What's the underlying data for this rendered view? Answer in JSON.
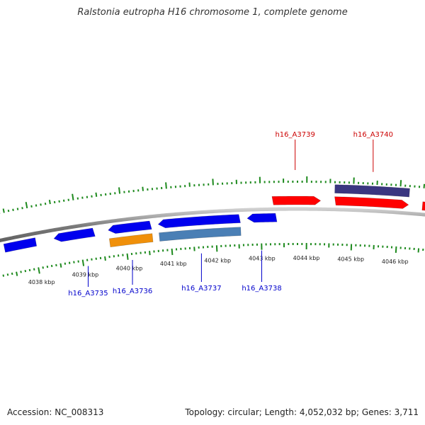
{
  "title": "Ralstonia eutropha H16 chromosome 1, complete genome",
  "footer": {
    "accession": "Accession: NC_008313",
    "stats": "Topology: circular; Length: 4,052,032 bp; Genes: 3,711"
  },
  "colors": {
    "tick": "#1e8a1e",
    "backbone": "#8a8a8a",
    "forward_gene": "#ff0000",
    "reverse_gene": "#0000ee",
    "label_top": "#cc0000",
    "label_bottom": "#0000cc",
    "orange_feature": "#f0900a",
    "steelblue_feature": "#4a7fb5",
    "navy_feature": "#3a3680"
  },
  "scale_labels": [
    "4038 kbp",
    "4039 kbp",
    "4040 kbp",
    "4041 kbp",
    "4042 kbp",
    "4043 kbp",
    "4044 kbp",
    "4045 kbp",
    "4046 kbp"
  ],
  "gene_labels_top": [
    "h16_A3739",
    "h16_A3740"
  ],
  "gene_labels_bottom": [
    "h16_A3735",
    "h16_A3736",
    "h16_A3737",
    "h16_A3738"
  ],
  "features": [
    {
      "lane": "reverse",
      "start_kbp": 4037.35,
      "end_kbp": 4038.05,
      "color": "reverse_gene",
      "arrow": "none"
    },
    {
      "lane": "reverse",
      "start_kbp": 4038.45,
      "end_kbp": 4039.35,
      "color": "reverse_gene",
      "arrow": "left"
    },
    {
      "lane": "reverse",
      "start_kbp": 4039.65,
      "end_kbp": 4040.6,
      "color": "reverse_gene",
      "arrow": "left"
    },
    {
      "lane": "reverse2",
      "start_kbp": 4039.65,
      "end_kbp": 4040.6,
      "color": "orange_feature",
      "arrow": "none"
    },
    {
      "lane": "reverse",
      "start_kbp": 4040.75,
      "end_kbp": 4042.55,
      "color": "reverse_gene",
      "arrow": "left"
    },
    {
      "lane": "reverse2",
      "start_kbp": 4040.75,
      "end_kbp": 4042.55,
      "color": "steelblue_feature",
      "arrow": "none"
    },
    {
      "lane": "reverse",
      "start_kbp": 4042.7,
      "end_kbp": 4043.35,
      "color": "reverse_gene",
      "arrow": "left"
    },
    {
      "lane": "forward",
      "start_kbp": 4043.25,
      "end_kbp": 4044.3,
      "color": "forward_gene",
      "arrow": "right"
    },
    {
      "lane": "forward",
      "start_kbp": 4044.6,
      "end_kbp": 4046.2,
      "color": "forward_gene",
      "arrow": "right"
    },
    {
      "lane": "forward2",
      "start_kbp": 4044.6,
      "end_kbp": 4046.2,
      "color": "navy_feature",
      "arrow": "none"
    },
    {
      "lane": "forward",
      "start_kbp": 4046.5,
      "end_kbp": 4047.2,
      "color": "forward_gene",
      "arrow": "none"
    }
  ],
  "label_positions_kbp": {
    "h16_A3735": 4039.1,
    "h16_A3736": 4040.1,
    "h16_A3737": 4041.65,
    "h16_A3738": 4043.0,
    "h16_A3739": 4043.75,
    "h16_A3740": 4045.4
  }
}
